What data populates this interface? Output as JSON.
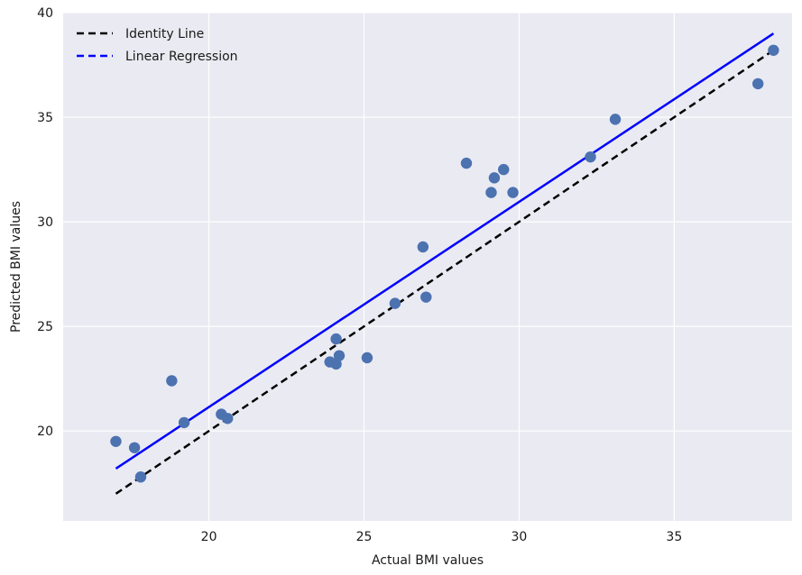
{
  "chart_data": {
    "type": "scatter",
    "title": "",
    "xlabel": "Actual BMI values",
    "ylabel": "Predicted BMI values",
    "xlim": [
      15.3,
      38.8
    ],
    "ylim": [
      15.7,
      40.0
    ],
    "xticks": [
      20,
      25,
      30,
      35
    ],
    "yticks": [
      20,
      25,
      30,
      35,
      40
    ],
    "grid": true,
    "legend_position": "top-left",
    "legend": [
      {
        "label": "Identity Line",
        "color": "#000000",
        "style": "dashed"
      },
      {
        "label": "Linear Regression",
        "color": "#0000ff",
        "style": "dashed"
      }
    ],
    "background_color": "#eaeaf2",
    "grid_color": "#ffffff",
    "point_color": "#4c72b0",
    "identity_line": {
      "x": [
        17.0,
        38.2
      ],
      "y": [
        17.0,
        38.2
      ]
    },
    "regression_line": {
      "x": [
        17.0,
        38.2
      ],
      "y": [
        18.2,
        39.0
      ]
    },
    "points": [
      {
        "x": 17.0,
        "y": 19.5
      },
      {
        "x": 17.6,
        "y": 19.2
      },
      {
        "x": 17.8,
        "y": 17.8
      },
      {
        "x": 18.8,
        "y": 22.4
      },
      {
        "x": 19.2,
        "y": 20.4
      },
      {
        "x": 20.4,
        "y": 20.8
      },
      {
        "x": 20.6,
        "y": 20.6
      },
      {
        "x": 23.9,
        "y": 23.3
      },
      {
        "x": 24.1,
        "y": 24.4
      },
      {
        "x": 24.1,
        "y": 23.2
      },
      {
        "x": 24.2,
        "y": 23.6
      },
      {
        "x": 25.1,
        "y": 23.5
      },
      {
        "x": 26.0,
        "y": 26.1
      },
      {
        "x": 26.9,
        "y": 28.8
      },
      {
        "x": 27.0,
        "y": 26.4
      },
      {
        "x": 28.3,
        "y": 32.8
      },
      {
        "x": 29.1,
        "y": 31.4
      },
      {
        "x": 29.2,
        "y": 32.1
      },
      {
        "x": 29.5,
        "y": 32.5
      },
      {
        "x": 29.8,
        "y": 31.4
      },
      {
        "x": 32.3,
        "y": 33.1
      },
      {
        "x": 33.1,
        "y": 34.9
      },
      {
        "x": 37.7,
        "y": 36.6
      },
      {
        "x": 38.2,
        "y": 38.2
      }
    ]
  }
}
